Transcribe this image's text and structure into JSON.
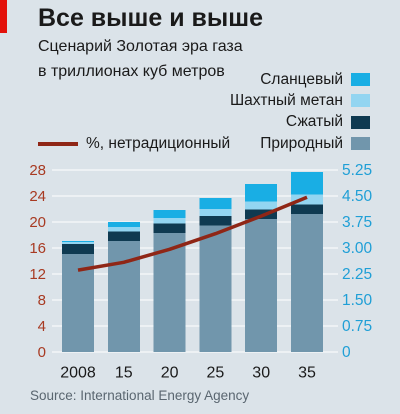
{
  "colors": {
    "background": "#dbe3e9",
    "brand": "#e3120b",
    "gridline": "#ffffff",
    "left_axis_text": "#a83a22",
    "right_axis_text": "#1f9fd6",
    "text": "#1a1a1a",
    "source_text": "#5a6670"
  },
  "chart_data": {
    "type": "bar",
    "stacked": true,
    "title": "Все выше и выше",
    "subtitle": "Сценарий Золотая эра газа",
    "units": "в триллионах куб метров",
    "source": "Source: International Energy Agency",
    "categories": [
      "2008",
      "15",
      "20",
      "25",
      "30",
      "35"
    ],
    "bar_axis": "right",
    "series": [
      {
        "name": "Природный",
        "values": [
          2.83,
          3.2,
          3.43,
          3.65,
          3.84,
          3.98
        ],
        "color": "#7196ac"
      },
      {
        "name": "Сжатый",
        "values": [
          0.28,
          0.28,
          0.27,
          0.27,
          0.27,
          0.28
        ],
        "color": "#0f3a51"
      },
      {
        "name": "Шахтный метан",
        "values": [
          0.06,
          0.12,
          0.17,
          0.2,
          0.23,
          0.28
        ],
        "color": "#93d5f1"
      },
      {
        "name": "Сланцевый",
        "values": [
          0.03,
          0.15,
          0.23,
          0.32,
          0.51,
          0.65
        ],
        "color": "#19aee4"
      }
    ],
    "line_series": {
      "name": "%, нетрадиционный",
      "axis": "left",
      "values": [
        12.6,
        13.8,
        15.8,
        18.2,
        20.9,
        23.8
      ],
      "color": "#8f2616"
    },
    "left_axis": {
      "ticks": [
        "0",
        "4",
        "8",
        "12",
        "16",
        "20",
        "24",
        "28"
      ],
      "range": [
        0,
        28
      ]
    },
    "right_axis": {
      "ticks": [
        "0",
        "0.75",
        "1.50",
        "2.25",
        "3.00",
        "3.75",
        "4.50",
        "5.25"
      ],
      "range": [
        0,
        5.25
      ]
    },
    "grid": true,
    "legend_position": "top-right"
  }
}
